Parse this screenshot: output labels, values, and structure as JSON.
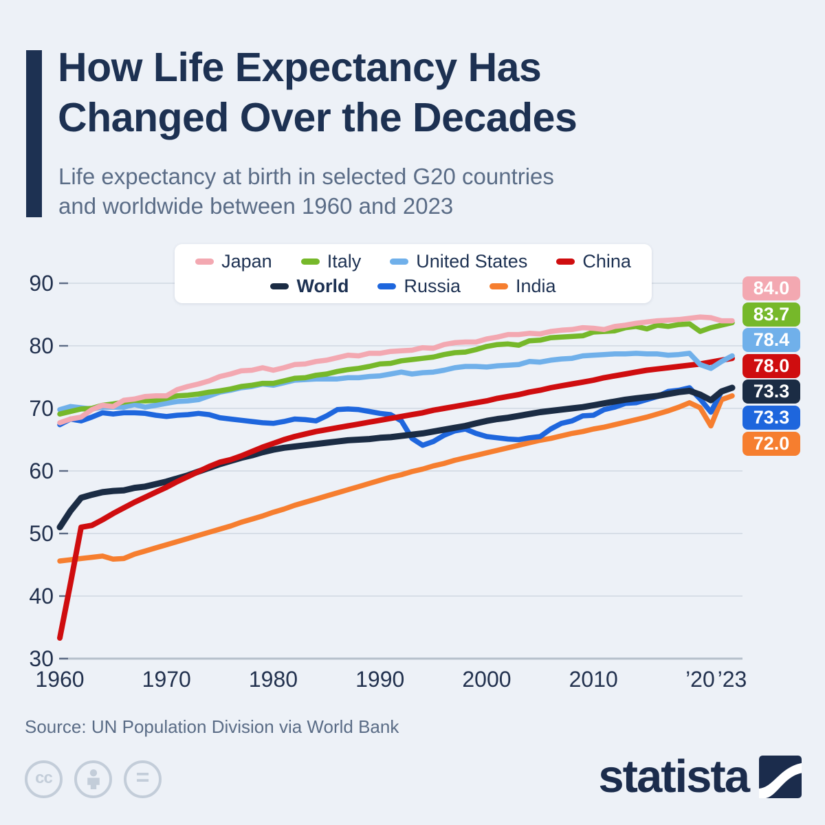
{
  "header": {
    "title_lines": [
      "How Life Expectancy Has",
      "Changed Over the Decades"
    ],
    "subtitle_lines": [
      "Life expectancy at birth in selected G20 countries",
      "and worldwide between 1960 and 2023"
    ]
  },
  "colors": {
    "background": "#edf1f7",
    "title_navy": "#1d3152",
    "subtitle_gray": "#5a6c86",
    "gridline": "#cad2dd",
    "baseline": "#b5bfcb",
    "tick_stub": "#5c6b85",
    "axis_label": "#22314e",
    "license_gray": "#c3cdd9"
  },
  "legend": {
    "rows": [
      [
        0,
        1,
        2,
        3
      ],
      [
        4,
        5,
        6
      ]
    ],
    "bold_indices": [
      4
    ]
  },
  "footer": {
    "source": "Source: UN Population Division via World Bank",
    "license_icons": [
      {
        "name": "creative-commons-icon",
        "glyph": "cc"
      },
      {
        "name": "attribution-icon",
        "glyph": "person"
      },
      {
        "name": "no-derivatives-icon",
        "glyph": "="
      }
    ],
    "brand_wordmark": "statista"
  },
  "chart_data": {
    "type": "line",
    "title": "How Life Expectancy Has Changed Over the Decades",
    "xlabel": "",
    "ylabel": "",
    "ylim": [
      30,
      90
    ],
    "yticks": [
      90,
      80,
      70,
      60,
      50,
      40,
      30
    ],
    "grid": "horizontal",
    "legend_position": "top-center",
    "xticks": [
      {
        "label": "1960",
        "year": 1960
      },
      {
        "label": "1970",
        "year": 1970
      },
      {
        "label": "1980",
        "year": 1980
      },
      {
        "label": "1990",
        "year": 1990
      },
      {
        "label": "2000",
        "year": 2000
      },
      {
        "label": "2010",
        "year": 2010
      },
      {
        "label": "’20",
        "year": 2020
      },
      {
        "label": "’23",
        "year": 2023
      }
    ],
    "years": [
      1960,
      1961,
      1962,
      1963,
      1964,
      1965,
      1966,
      1967,
      1968,
      1969,
      1970,
      1971,
      1972,
      1973,
      1974,
      1975,
      1976,
      1977,
      1978,
      1979,
      1980,
      1981,
      1982,
      1983,
      1984,
      1985,
      1986,
      1987,
      1988,
      1989,
      1990,
      1991,
      1992,
      1993,
      1994,
      1995,
      1996,
      1997,
      1998,
      1999,
      2000,
      2001,
      2002,
      2003,
      2004,
      2005,
      2006,
      2007,
      2008,
      2009,
      2010,
      2011,
      2012,
      2013,
      2014,
      2015,
      2016,
      2017,
      2018,
      2019,
      2020,
      2021,
      2022,
      2023
    ],
    "series": [
      {
        "name": "Japan",
        "color": "#f3a8b1",
        "end_label": "84.0",
        "line_width": 7.5,
        "values": [
          67.7,
          68.3,
          68.6,
          69.8,
          70.5,
          70.3,
          71.3,
          71.5,
          71.9,
          72.0,
          72.0,
          73.0,
          73.5,
          73.9,
          74.4,
          75.1,
          75.5,
          76.0,
          76.1,
          76.5,
          76.1,
          76.5,
          77.0,
          77.1,
          77.5,
          77.7,
          78.1,
          78.5,
          78.4,
          78.8,
          78.8,
          79.1,
          79.2,
          79.3,
          79.7,
          79.6,
          80.2,
          80.5,
          80.6,
          80.6,
          81.1,
          81.4,
          81.8,
          81.8,
          82.0,
          81.9,
          82.3,
          82.5,
          82.6,
          82.9,
          82.8,
          82.6,
          83.1,
          83.3,
          83.6,
          83.8,
          84.0,
          84.1,
          84.2,
          84.4,
          84.6,
          84.5,
          84.0,
          84.0
        ]
      },
      {
        "name": "Italy",
        "color": "#76b82a",
        "end_label": "83.7",
        "line_width": 7.5,
        "values": [
          69.1,
          69.5,
          69.9,
          70.0,
          70.5,
          70.7,
          71.0,
          71.3,
          71.2,
          71.3,
          71.6,
          72.0,
          72.1,
          72.3,
          72.6,
          72.8,
          73.1,
          73.5,
          73.7,
          74.0,
          74.0,
          74.4,
          74.8,
          74.9,
          75.3,
          75.5,
          75.9,
          76.2,
          76.4,
          76.7,
          77.1,
          77.2,
          77.6,
          77.8,
          78.0,
          78.2,
          78.6,
          78.9,
          79.0,
          79.4,
          79.9,
          80.2,
          80.3,
          80.1,
          80.8,
          80.9,
          81.3,
          81.4,
          81.5,
          81.6,
          82.2,
          82.3,
          82.4,
          82.9,
          83.1,
          82.7,
          83.3,
          83.1,
          83.4,
          83.5,
          82.3,
          82.9,
          83.3,
          83.7
        ]
      },
      {
        "name": "United States",
        "color": "#70b0ea",
        "end_label": "78.4",
        "line_width": 7.5,
        "values": [
          69.8,
          70.3,
          70.1,
          69.9,
          70.2,
          70.2,
          70.2,
          70.6,
          70.2,
          70.5,
          70.8,
          71.1,
          71.2,
          71.4,
          72.0,
          72.6,
          72.9,
          73.3,
          73.5,
          73.9,
          73.7,
          74.1,
          74.5,
          74.6,
          74.7,
          74.7,
          74.7,
          74.9,
          74.9,
          75.1,
          75.2,
          75.5,
          75.8,
          75.5,
          75.7,
          75.8,
          76.1,
          76.5,
          76.7,
          76.7,
          76.6,
          76.8,
          76.9,
          77.0,
          77.5,
          77.4,
          77.7,
          77.9,
          78.0,
          78.4,
          78.5,
          78.6,
          78.7,
          78.7,
          78.8,
          78.7,
          78.7,
          78.5,
          78.6,
          78.8,
          77.0,
          76.4,
          77.5,
          78.4
        ]
      },
      {
        "name": "China",
        "color": "#cf0d0f",
        "end_label": "78.0",
        "line_width": 8,
        "values": [
          33.3,
          42.0,
          51.0,
          51.3,
          52.2,
          53.2,
          54.1,
          55.0,
          55.8,
          56.6,
          57.4,
          58.3,
          59.1,
          59.9,
          60.7,
          61.4,
          61.8,
          62.4,
          63.1,
          63.8,
          64.4,
          65.0,
          65.5,
          65.9,
          66.3,
          66.6,
          66.9,
          67.2,
          67.5,
          67.8,
          68.1,
          68.4,
          68.7,
          69.0,
          69.3,
          69.7,
          70.0,
          70.3,
          70.6,
          70.9,
          71.2,
          71.6,
          71.9,
          72.2,
          72.6,
          72.9,
          73.3,
          73.6,
          73.9,
          74.2,
          74.5,
          74.9,
          75.2,
          75.5,
          75.8,
          76.1,
          76.3,
          76.5,
          76.7,
          76.9,
          77.1,
          77.4,
          77.7,
          78.0
        ]
      },
      {
        "name": "World",
        "color": "#1b2c44",
        "end_label": "73.3",
        "line_width": 9,
        "values": [
          51.0,
          53.6,
          55.7,
          56.2,
          56.6,
          56.8,
          56.9,
          57.3,
          57.5,
          57.9,
          58.3,
          58.8,
          59.3,
          59.9,
          60.5,
          61.1,
          61.6,
          62.1,
          62.5,
          63.0,
          63.4,
          63.7,
          63.9,
          64.1,
          64.3,
          64.5,
          64.7,
          64.9,
          65.0,
          65.1,
          65.3,
          65.4,
          65.6,
          65.8,
          66.0,
          66.3,
          66.6,
          66.9,
          67.2,
          67.6,
          68.0,
          68.3,
          68.5,
          68.8,
          69.1,
          69.4,
          69.6,
          69.8,
          70.0,
          70.2,
          70.5,
          70.8,
          71.1,
          71.4,
          71.6,
          71.8,
          72.0,
          72.3,
          72.6,
          72.8,
          72.2,
          71.3,
          72.7,
          73.3
        ]
      },
      {
        "name": "Russia",
        "color": "#1e66dd",
        "end_label": "73.3",
        "line_width": 7.5,
        "values": [
          67.4,
          68.3,
          68.0,
          68.6,
          69.3,
          69.1,
          69.3,
          69.3,
          69.2,
          68.9,
          68.7,
          68.9,
          69.0,
          69.2,
          69.0,
          68.5,
          68.3,
          68.1,
          67.9,
          67.7,
          67.6,
          67.9,
          68.3,
          68.2,
          68.0,
          68.8,
          69.8,
          69.9,
          69.8,
          69.5,
          69.2,
          69.0,
          68.0,
          65.2,
          64.1,
          64.7,
          65.7,
          66.4,
          66.7,
          66.0,
          65.5,
          65.3,
          65.1,
          65.0,
          65.3,
          65.5,
          66.7,
          67.6,
          68.0,
          68.8,
          68.9,
          69.8,
          70.2,
          70.8,
          70.9,
          71.4,
          71.9,
          72.7,
          72.9,
          73.3,
          71.5,
          69.4,
          72.7,
          73.3
        ]
      },
      {
        "name": "India",
        "color": "#f67e2f",
        "end_label": "72.0",
        "line_width": 7.5,
        "values": [
          45.6,
          45.8,
          46.0,
          46.2,
          46.4,
          45.9,
          46.0,
          46.7,
          47.2,
          47.7,
          48.2,
          48.7,
          49.2,
          49.7,
          50.2,
          50.7,
          51.2,
          51.8,
          52.3,
          52.8,
          53.4,
          53.9,
          54.5,
          55.0,
          55.5,
          56.0,
          56.5,
          57.0,
          57.5,
          58.0,
          58.5,
          59.0,
          59.4,
          59.9,
          60.3,
          60.8,
          61.2,
          61.7,
          62.1,
          62.5,
          62.9,
          63.3,
          63.7,
          64.1,
          64.5,
          64.9,
          65.2,
          65.6,
          66.0,
          66.3,
          66.7,
          67.0,
          67.4,
          67.8,
          68.2,
          68.6,
          69.1,
          69.6,
          70.2,
          70.9,
          70.1,
          67.2,
          71.4,
          72.0
        ]
      }
    ]
  }
}
